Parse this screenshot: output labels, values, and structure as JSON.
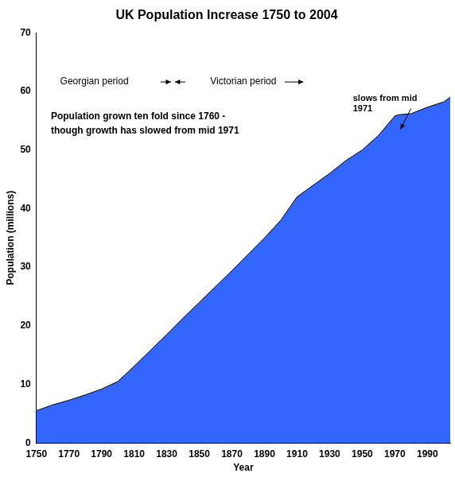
{
  "chart_data": {
    "type": "area",
    "title": "UK Population Increase 1750 to 2004",
    "x_label": "Year",
    "y_label": "Population (millions)",
    "x": [
      1750,
      1760,
      1770,
      1780,
      1790,
      1800,
      1810,
      1820,
      1830,
      1840,
      1850,
      1860,
      1870,
      1880,
      1890,
      1900,
      1910,
      1920,
      1930,
      1940,
      1950,
      1960,
      1970,
      1972,
      1980,
      1990,
      2000,
      2004
    ],
    "values": [
      5.5,
      6.5,
      7.3,
      8.2,
      9.2,
      10.5,
      13.1,
      15.8,
      18.5,
      21.3,
      24,
      26.7,
      29.4,
      32.2,
      35,
      38,
      42,
      44,
      46,
      48.2,
      50,
      52.5,
      55.8,
      56,
      56.2,
      57.3,
      58.2,
      59
    ],
    "color": "#3366ff",
    "xlim": [
      1750,
      2004
    ],
    "xticks": [
      1750,
      1770,
      1790,
      1810,
      1830,
      1850,
      1870,
      1890,
      1910,
      1930,
      1950,
      1970,
      1990
    ],
    "ylim": [
      0,
      70
    ],
    "yticks": [
      0,
      10,
      20,
      30,
      40,
      50,
      60,
      70
    ],
    "grid": false,
    "annotations": [
      {
        "text": "Georgian period"
      },
      {
        "text": "Victorian period"
      },
      {
        "text": [
          "Population grown ten fold since 1760 -",
          "though growth has slowed from mid 1971"
        ]
      },
      {
        "text": [
          "slows from mid",
          "1971"
        ]
      }
    ]
  }
}
